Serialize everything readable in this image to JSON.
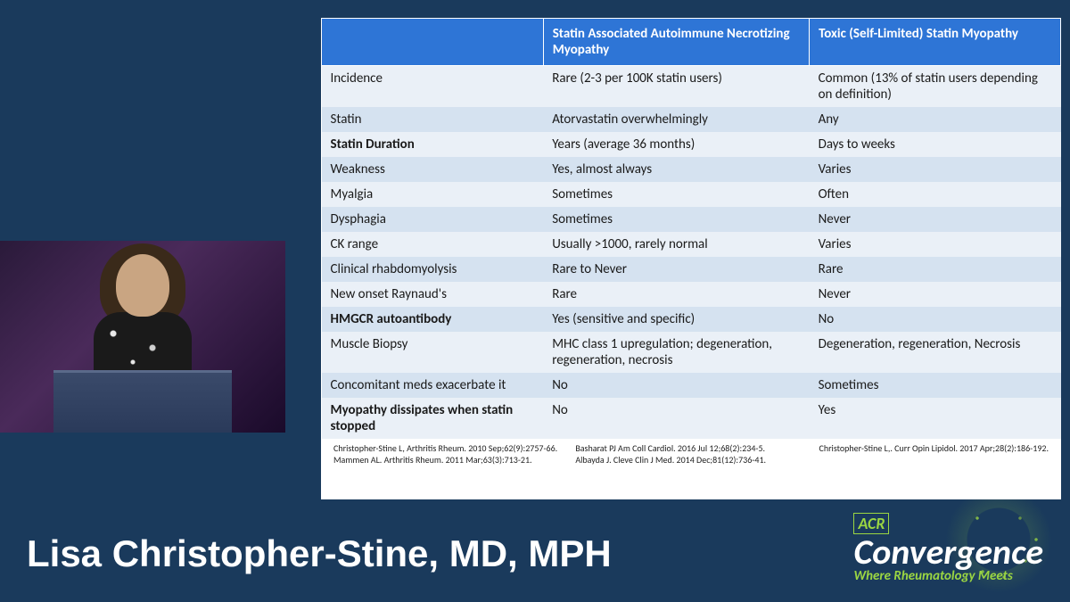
{
  "speaker": {
    "name": "Lisa Christopher-Stine, MD, MPH"
  },
  "logo": {
    "acr": "ACR",
    "title": "Convergence",
    "tagline": "Where Rheumatology Meets"
  },
  "table": {
    "type": "table",
    "header_bg": "#2e75d6",
    "header_text_color": "#ffffff",
    "row_odd_bg": "#eaf0f7",
    "row_even_bg": "#d5e2f0",
    "font_size": 15,
    "columns": [
      "",
      "Statin Associated Autoimmune Necrotizing Myopathy",
      "Toxic (Self-Limited) Statin Myopathy"
    ],
    "column_widths": [
      "30%",
      "36%",
      "34%"
    ],
    "rows": [
      {
        "bold": false,
        "cells": [
          "Incidence",
          "Rare (2-3 per 100K statin users)",
          "Common (13% of statin users depending on definition)"
        ]
      },
      {
        "bold": false,
        "cells": [
          "Statin",
          "Atorvastatin overwhelmingly",
          "Any"
        ]
      },
      {
        "bold": true,
        "cells": [
          "Statin Duration",
          "Years (average 36 months)",
          "Days to weeks"
        ]
      },
      {
        "bold": false,
        "cells": [
          "Weakness",
          "Yes, almost always",
          "Varies"
        ]
      },
      {
        "bold": false,
        "cells": [
          "Myalgia",
          "Sometimes",
          "Often"
        ]
      },
      {
        "bold": false,
        "cells": [
          "Dysphagia",
          "Sometimes",
          "Never"
        ]
      },
      {
        "bold": false,
        "cells": [
          "CK range",
          "Usually >1000, rarely normal",
          "Varies"
        ]
      },
      {
        "bold": false,
        "cells": [
          "Clinical rhabdomyolysis",
          "Rare to Never",
          "Rare"
        ]
      },
      {
        "bold": false,
        "cells": [
          "New onset Raynaud's",
          "Rare",
          "Never"
        ]
      },
      {
        "bold": true,
        "cells": [
          "HMGCR autoantibody",
          "Yes (sensitive and specific)",
          "No"
        ]
      },
      {
        "bold": false,
        "cells": [
          "Muscle Biopsy",
          "MHC class 1 upregulation; degeneration, regeneration, necrosis",
          "Degeneration, regeneration, Necrosis"
        ]
      },
      {
        "bold": false,
        "cells": [
          "Concomitant meds exacerbate it",
          "No",
          "Sometimes"
        ]
      },
      {
        "bold": true,
        "cells": [
          "Myopathy dissipates when statin stopped",
          "No",
          "Yes"
        ]
      }
    ]
  },
  "citations": {
    "left": "Christopher-Stine L, Arthritis Rheum. 2010 Sep;62(9):2757-66.\nMammen AL. Arthritis Rheum. 2011 Mar;63(3):713-21.",
    "center": "Basharat PJ Am Coll Cardiol. 2016 Jul 12;68(2):234-5.\nAlbayda J. Cleve Clin J Med. 2014 Dec;81(12):736-41.",
    "right": "Christopher-Stine L,. Curr Opin Lipidol. 2017 Apr;28(2):186-192."
  },
  "colors": {
    "page_bg": "#1a3a5c",
    "accent_green": "#9bd642"
  }
}
